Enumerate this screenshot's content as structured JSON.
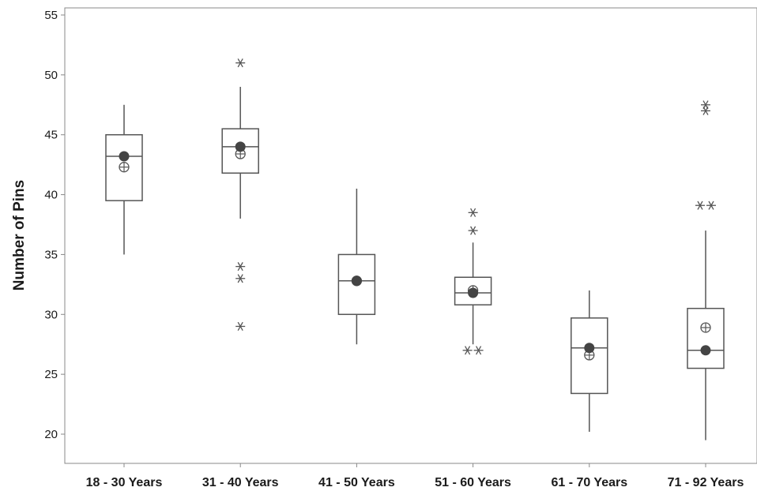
{
  "chart_data": {
    "type": "boxplot",
    "title": "",
    "xlabel": "",
    "ylabel": "Number of Pins",
    "ylim": [
      18,
      56
    ],
    "yticks": [
      20,
      25,
      30,
      35,
      40,
      45,
      50,
      55
    ],
    "grid": false,
    "legend": "none",
    "colors": {
      "box_stroke": "#555555",
      "median_dot": "#444444",
      "axis": "#888888"
    },
    "markers": {
      "median": "filled-circle",
      "mean": "circle-plus",
      "outlier": "asterisk"
    },
    "categories": [
      "18 - 30 Years",
      "31 - 40 Years",
      "41 - 50 Years",
      "51 - 60 Years",
      "61 - 70 Years",
      "71 - 92 Years"
    ],
    "boxes": [
      {
        "category": "18 - 30 Years",
        "whisker_low": 35,
        "q1": 39.5,
        "median": 43.2,
        "q3": 45,
        "whisker_high": 47.5,
        "mean": 42.3,
        "outliers": []
      },
      {
        "category": "31 - 40 Years",
        "whisker_low": 38,
        "q1": 41.8,
        "median": 44,
        "q3": 45.5,
        "whisker_high": 49,
        "mean": 43.4,
        "outliers": [
          51,
          34,
          33,
          29
        ]
      },
      {
        "category": "41 - 50 Years",
        "whisker_low": 27.5,
        "q1": 30,
        "median": 32.8,
        "q3": 35,
        "whisker_high": 40.5,
        "mean": 32.8,
        "outliers": []
      },
      {
        "category": "51 - 60 Years",
        "whisker_low": 27.5,
        "q1": 30.8,
        "median": 31.8,
        "q3": 33.1,
        "whisker_high": 36,
        "mean": 32,
        "outliers": [
          38.5,
          37,
          27,
          27
        ]
      },
      {
        "category": "61 - 70 Years",
        "whisker_low": 20.2,
        "q1": 23.4,
        "median": 27.2,
        "q3": 29.7,
        "whisker_high": 32,
        "mean": 26.6,
        "outliers": []
      },
      {
        "category": "71 - 92 Years",
        "whisker_low": 19.5,
        "q1": 25.5,
        "median": 27,
        "q3": 30.5,
        "whisker_high": 37,
        "mean": 28.9,
        "outliers": [
          47.5,
          47,
          39.1,
          39.1
        ]
      }
    ]
  }
}
